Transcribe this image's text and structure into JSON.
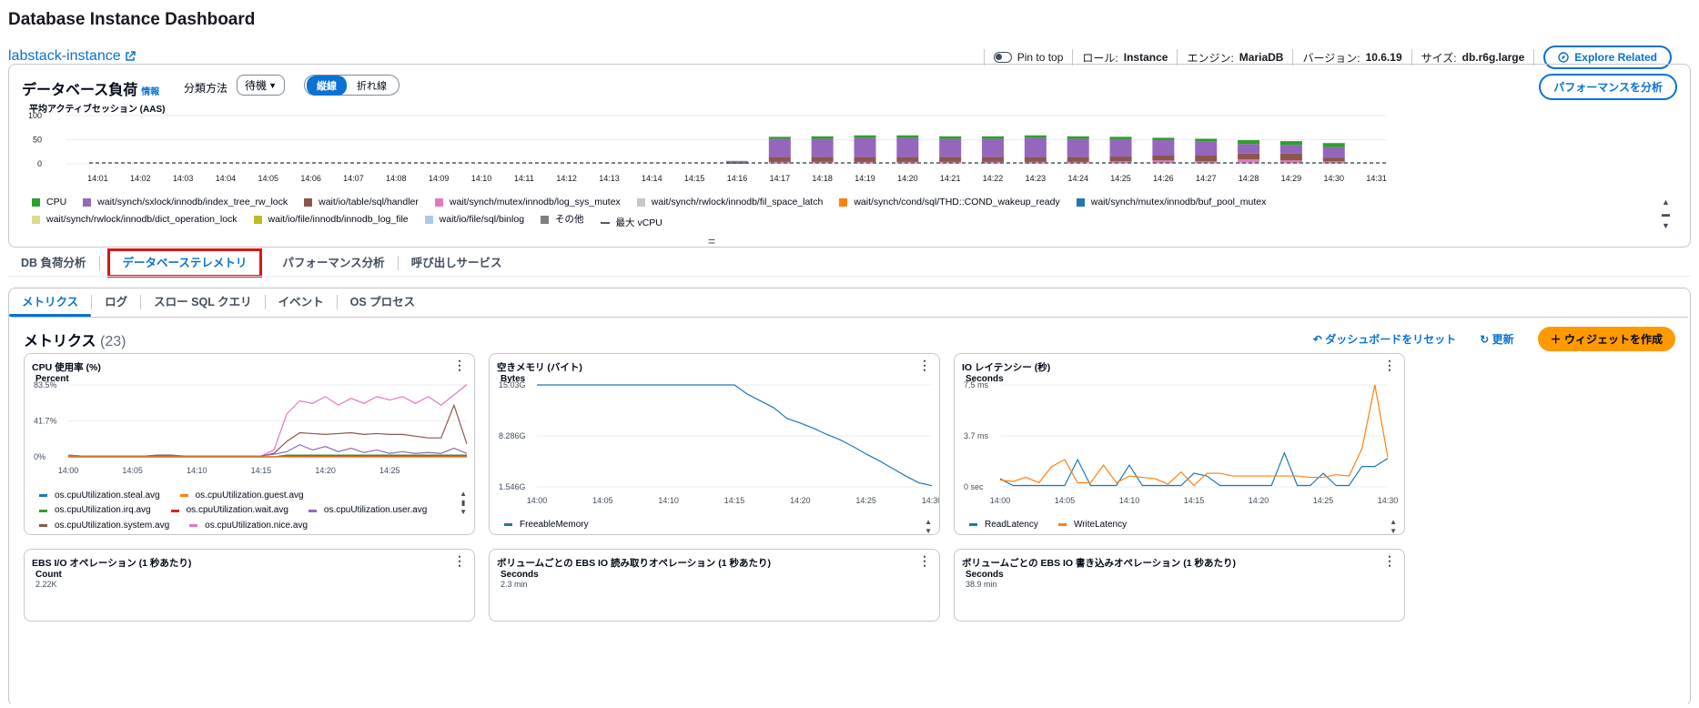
{
  "header": {
    "title": "Database Instance Dashboard",
    "instance": "labstack-instance"
  },
  "infobar": {
    "pin": "Pin to top",
    "role_label": "ロール:",
    "role": "Instance",
    "engine_label": "エンジン:",
    "engine": "MariaDB",
    "version_label": "バージョン:",
    "version": "10.6.19",
    "size_label": "サイズ:",
    "size": "db.r6g.large",
    "explore": "Explore Related"
  },
  "load": {
    "title": "データベース負荷",
    "info": "情報",
    "group_label": "分類方法",
    "group_value": "待機",
    "seg": [
      "縦線",
      "折れ線"
    ],
    "analyze": "パフォーマンスを分析",
    "ylabel": "平均アクティブセッション (AAS)"
  },
  "chart_data": [
    {
      "type": "bar",
      "title": "データベース負荷",
      "ylabel": "平均アクティブセッション (AAS)",
      "ylim": [
        0,
        100
      ],
      "yticks": [
        "100",
        "50",
        "0"
      ],
      "categories": [
        "14:01",
        "14:02",
        "14:03",
        "14:04",
        "14:05",
        "14:06",
        "14:07",
        "14:08",
        "14:09",
        "14:10",
        "14:11",
        "14:12",
        "14:13",
        "14:14",
        "14:15",
        "14:16",
        "14:17",
        "14:18",
        "14:19",
        "14:20",
        "14:21",
        "14:22",
        "14:23",
        "14:24",
        "14:25",
        "14:26",
        "14:27",
        "14:28",
        "14:29",
        "14:30",
        "14:31"
      ],
      "series": [
        {
          "name": "CPU",
          "color": "#2ca02c",
          "values": [
            0,
            0,
            0,
            0,
            0,
            0,
            0,
            0,
            0,
            0,
            0,
            0,
            0,
            0,
            0,
            1,
            4,
            5,
            5,
            5,
            5,
            5,
            5,
            5,
            5,
            5,
            5,
            8,
            8,
            8,
            0
          ]
        },
        {
          "name": "wait/synch/sxlock/innodb/index_tree_rw_lock",
          "color": "#9467bd",
          "values": [
            0,
            0,
            0,
            0,
            0,
            0,
            0,
            0,
            0,
            0,
            0,
            0,
            0,
            0,
            0,
            3,
            38,
            38,
            40,
            40,
            38,
            38,
            40,
            38,
            36,
            32,
            30,
            20,
            18,
            22,
            0
          ]
        },
        {
          "name": "wait/io/table/sql/handler",
          "color": "#8c564b",
          "values": [
            0,
            0,
            0,
            0,
            0,
            0,
            0,
            0,
            0,
            0,
            0,
            0,
            0,
            0,
            0,
            2,
            10,
            10,
            10,
            10,
            10,
            10,
            10,
            10,
            10,
            10,
            12,
            12,
            14,
            8,
            0
          ]
        },
        {
          "name": "wait/synch/mutex/innodb/log_sys_mutex",
          "color": "#e377c2",
          "values": [
            0,
            0,
            0,
            0,
            0,
            0,
            0,
            0,
            0,
            0,
            0,
            0,
            0,
            0,
            0,
            0,
            2,
            2,
            2,
            2,
            2,
            2,
            2,
            2,
            3,
            5,
            3,
            6,
            5,
            3,
            0
          ]
        },
        {
          "name": "wait/synch/rwlock/innodb/fil_space_latch",
          "color": "#c7c7c7",
          "values": [
            0,
            0,
            0,
            0,
            0,
            0,
            0,
            0,
            0,
            0,
            0,
            0,
            0,
            0,
            0,
            0,
            2,
            2,
            2,
            2,
            2,
            2,
            2,
            2,
            2,
            2,
            2,
            3,
            2,
            2,
            0
          ]
        }
      ],
      "legend": [
        "CPU",
        "wait/synch/sxlock/innodb/index_tree_rw_lock",
        "wait/io/table/sql/handler",
        "wait/synch/mutex/innodb/log_sys_mutex",
        "wait/synch/rwlock/innodb/fil_space_latch",
        "wait/synch/cond/sql/THD::COND_wakeup_ready",
        "wait/synch/mutex/innodb/buf_pool_mutex",
        "wait/synch/rwlock/innodb/dict_operation_lock",
        "wait/io/file/innodb/innodb_log_file",
        "wait/io/file/sql/binlog",
        "その他",
        "最大 vCPU"
      ],
      "legend_colors": [
        "#2ca02c",
        "#9467bd",
        "#8c564b",
        "#e377c2",
        "#c7c7c7",
        "#ff7f0e",
        "#1f77b4",
        "#dbdb8d",
        "#bcbd22",
        "#aec7e8",
        "#7f7f7f",
        "#545b64"
      ],
      "max_vcpu": 2
    },
    {
      "type": "line",
      "title": "CPU 使用率 (%)",
      "ylabel": "Percent",
      "yticks": [
        "83.5%",
        "41.7%",
        "0%"
      ],
      "ylim": [
        0,
        83.5
      ],
      "xticks": [
        "14:00",
        "14:05",
        "14:10",
        "14:15",
        "14:20",
        "14:25"
      ],
      "x": [
        0,
        1,
        2,
        3,
        4,
        5,
        6,
        7,
        8,
        9,
        10,
        11,
        12,
        13,
        14,
        15,
        16,
        17,
        18,
        19,
        20,
        21,
        22,
        23,
        24,
        25,
        26,
        27,
        28,
        29,
        30,
        31
      ],
      "series": [
        {
          "name": "os.cpuUtilization.nice.avg",
          "color": "#e377c2",
          "values": [
            1,
            1,
            1,
            1,
            1,
            1,
            1,
            2,
            1,
            1,
            1,
            1,
            1,
            1,
            1,
            1,
            8,
            50,
            65,
            62,
            70,
            60,
            68,
            62,
            70,
            66,
            70,
            62,
            70,
            60,
            72,
            84
          ]
        },
        {
          "name": "os.cpuUtilization.system.avg",
          "color": "#8c564b",
          "values": [
            2,
            1,
            1,
            1,
            1,
            1,
            1,
            2,
            2,
            1,
            1,
            1,
            1,
            1,
            1,
            1,
            4,
            18,
            28,
            27,
            26,
            27,
            28,
            26,
            27,
            26,
            26,
            24,
            22,
            22,
            60,
            15
          ]
        },
        {
          "name": "os.cpuUtilization.user.avg",
          "color": "#9467bd",
          "values": [
            2,
            1,
            1,
            1,
            1,
            1,
            1,
            1,
            1,
            1,
            1,
            1,
            1,
            1,
            1,
            1,
            3,
            6,
            14,
            8,
            12,
            6,
            10,
            5,
            8,
            4,
            6,
            4,
            5,
            4,
            10,
            4
          ]
        },
        {
          "name": "os.cpuUtilization.wait.avg",
          "color": "#d62728",
          "values": [
            0,
            0,
            0,
            0,
            0,
            0,
            0,
            0,
            0,
            0,
            0,
            0,
            0,
            0,
            0,
            0,
            0,
            1,
            1,
            1,
            1,
            1,
            1,
            1,
            1,
            1,
            1,
            1,
            1,
            1,
            1,
            1
          ]
        },
        {
          "name": "os.cpuUtilization.irq.avg",
          "color": "#2ca02c",
          "values": [
            0,
            0,
            0,
            0,
            0,
            0,
            0,
            0,
            0,
            0,
            0,
            0,
            0,
            0,
            0,
            0,
            0,
            2,
            2,
            2,
            2,
            2,
            2,
            2,
            2,
            2,
            2,
            2,
            2,
            2,
            2,
            2
          ]
        },
        {
          "name": "os.cpuUtilization.steal.avg",
          "color": "#1f77b4",
          "values": [
            0,
            0,
            0,
            0,
            0,
            0,
            0,
            0,
            0,
            0,
            0,
            0,
            0,
            0,
            0,
            0,
            0,
            0,
            0,
            0,
            0,
            0,
            0,
            0,
            0,
            0,
            0,
            0,
            0,
            0,
            0,
            0
          ]
        },
        {
          "name": "os.cpuUtilization.guest.avg",
          "color": "#ff7f0e",
          "values": [
            0,
            0,
            0,
            0,
            0,
            0,
            0,
            0,
            0,
            0,
            0,
            0,
            0,
            0,
            0,
            0,
            0,
            0,
            0,
            0,
            0,
            0,
            0,
            0,
            0,
            0,
            0,
            0,
            0,
            0,
            0,
            0
          ]
        }
      ],
      "legend_order": [
        "os.cpuUtilization.steal.avg",
        "os.cpuUtilization.guest.avg",
        "os.cpuUtilization.irq.avg",
        "os.cpuUtilization.wait.avg",
        "os.cpuUtilization.user.avg",
        "os.cpuUtilization.system.avg",
        "os.cpuUtilization.nice.avg"
      ]
    },
    {
      "type": "line",
      "title": "空きメモリ (バイト)",
      "ylabel": "Bytes",
      "yticks": [
        "15.03G",
        "8.286G",
        "1.546G"
      ],
      "ylim": [
        1.546,
        15.03
      ],
      "xticks": [
        "14:00",
        "14:05",
        "14:10",
        "14:15",
        "14:20",
        "14:25",
        "14:30"
      ],
      "x": [
        0,
        1,
        2,
        3,
        4,
        5,
        6,
        7,
        8,
        9,
        10,
        11,
        12,
        13,
        14,
        15,
        16,
        17,
        18,
        19,
        20,
        21,
        22,
        23,
        24,
        25,
        26,
        27,
        28,
        29,
        30
      ],
      "series": [
        {
          "name": "FreeableMemory",
          "color": "#1f77b4",
          "values": [
            15.03,
            15.03,
            15.03,
            15.03,
            15.03,
            15.03,
            15.03,
            15.03,
            15.03,
            15.03,
            15.03,
            15.03,
            15.03,
            15.03,
            15.03,
            15.03,
            13.8,
            12.9,
            12.0,
            10.6,
            10.0,
            9.3,
            8.5,
            7.8,
            6.9,
            5.9,
            5.0,
            4.0,
            3.0,
            2.1,
            1.7
          ]
        }
      ]
    },
    {
      "type": "line",
      "title": "IO レイテンシー (秒)",
      "ylabel": "Seconds",
      "yticks": [
        "7.5 ms",
        "3.7 ms",
        "0 sec"
      ],
      "ylim": [
        0,
        7.5
      ],
      "xticks": [
        "14:00",
        "14:05",
        "14:10",
        "14:15",
        "14:20",
        "14:25",
        "14:30"
      ],
      "x": [
        0,
        1,
        2,
        3,
        4,
        5,
        6,
        7,
        8,
        9,
        10,
        11,
        12,
        13,
        14,
        15,
        16,
        17,
        18,
        19,
        20,
        21,
        22,
        23,
        24,
        25,
        26,
        27,
        28,
        29,
        30
      ],
      "series": [
        {
          "name": "ReadLatency",
          "color": "#1f77b4",
          "values": [
            0.6,
            0.1,
            0.1,
            0.1,
            0.1,
            0.1,
            2.0,
            0.1,
            0.1,
            0.1,
            1.6,
            0.1,
            0.1,
            0.1,
            0.1,
            1.0,
            0.8,
            0.1,
            0.1,
            0.1,
            0.1,
            0.1,
            2.5,
            0.1,
            0.1,
            1.0,
            0.1,
            0.1,
            1.5,
            1.5,
            2.1
          ]
        },
        {
          "name": "WriteLatency",
          "color": "#ff7f0e",
          "values": [
            0.5,
            0.4,
            0.7,
            0.3,
            1.5,
            2.0,
            0.3,
            0.3,
            1.6,
            0.3,
            0.8,
            0.7,
            0.6,
            0.2,
            1.1,
            0.1,
            1.0,
            1.0,
            0.8,
            0.8,
            0.8,
            0.8,
            0.8,
            0.8,
            0.7,
            0.7,
            0.9,
            0.8,
            2.8,
            7.5,
            2.2
          ]
        }
      ]
    }
  ],
  "tabs1": [
    "DB 負荷分析",
    "データベーステレメトリ",
    "パフォーマンス分析",
    "呼び出しサービス"
  ],
  "tabs2": [
    "メトリクス",
    "ログ",
    "スロー SQL クエリ",
    "イベント",
    "OS プロセス"
  ],
  "metrics": {
    "title": "メトリクス",
    "count": "(23)",
    "reset": "ダッシュボードをリセット",
    "refresh": "更新",
    "create": "ウィジェットを作成"
  },
  "widgets_row2": [
    {
      "title": "EBS I/O オペレーション (1 秒あたり)",
      "unit": "Count",
      "ytop": "2.22K"
    },
    {
      "title": "ボリュームごとの EBS IO 読み取りオペレーション (1 秒あたり)",
      "unit": "Seconds",
      "ytop": "2.3 min"
    },
    {
      "title": "ボリュームごとの EBS IO 書き込みオペレーション (1 秒あたり)",
      "unit": "Seconds",
      "ytop": "38.9 min"
    }
  ]
}
